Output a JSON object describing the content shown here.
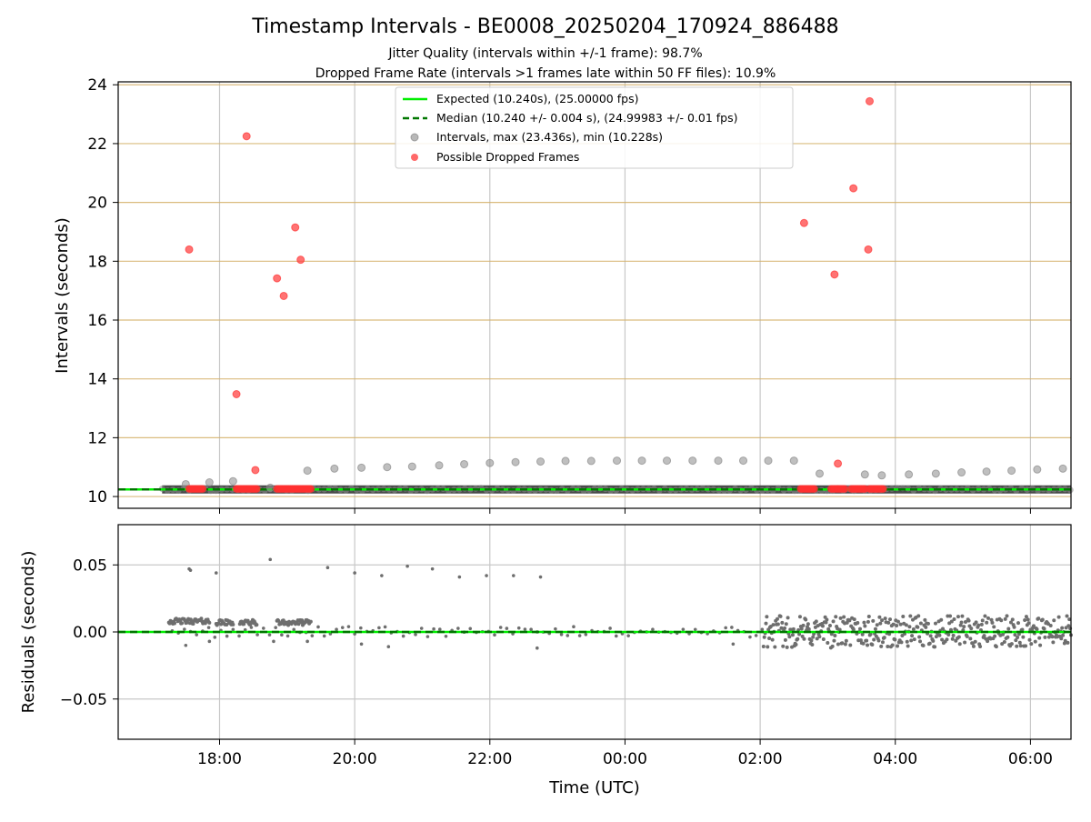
{
  "figure": {
    "title": "Timestamp Intervals - BE0008_20250204_170924_886488",
    "subtitle_1": "Jitter Quality (intervals within +/-1 frame): 98.7%",
    "subtitle_2": "Dropped Frame Rate (intervals >1 frames late within 50 FF files): 10.9%"
  },
  "chart_data": [
    {
      "type": "scatter",
      "name": "intervals",
      "ylabel": "Intervals (seconds)",
      "xlabel": "",
      "x_ticks": [
        "18:00",
        "20:00",
        "22:00",
        "00:00",
        "02:00",
        "04:00",
        "06:00"
      ],
      "x_tick_hours": [
        18,
        20,
        22,
        24,
        26,
        28,
        30
      ],
      "xlim_hours": [
        16.5,
        30.6
      ],
      "ylim": [
        9.6,
        24.1
      ],
      "y_ticks": [
        10,
        12,
        14,
        16,
        18,
        20,
        22,
        24
      ],
      "grid": true,
      "legend_position": "top-center",
      "legend": [
        {
          "label": "Expected (10.240s), (25.00000 fps)",
          "style": "solid-line",
          "color": "#00ee00"
        },
        {
          "label": "Median (10.240 +/- 0.004 s), (24.99983 +/- 0.01 fps)",
          "style": "dashed-line",
          "color": "#007700"
        },
        {
          "label": "Intervals, max (23.436s), min (10.228s)",
          "style": "marker",
          "color": "#888888"
        },
        {
          "label": "Possible Dropped Frames",
          "style": "marker",
          "color": "#ff4444"
        }
      ],
      "expected_value": 10.24,
      "median_value": 10.24,
      "baseline_band": {
        "start_hour": 17.15,
        "end_hour": 30.6,
        "value": 10.24
      },
      "gray_points": [
        {
          "x": 17.5,
          "y": 10.42
        },
        {
          "x": 17.85,
          "y": 10.48
        },
        {
          "x": 18.2,
          "y": 10.52
        },
        {
          "x": 18.75,
          "y": 10.3
        },
        {
          "x": 19.3,
          "y": 10.88
        },
        {
          "x": 19.7,
          "y": 10.95
        },
        {
          "x": 20.1,
          "y": 10.98
        },
        {
          "x": 20.48,
          "y": 11.0
        },
        {
          "x": 20.85,
          "y": 11.02
        },
        {
          "x": 21.25,
          "y": 11.06
        },
        {
          "x": 21.62,
          "y": 11.1
        },
        {
          "x": 22.0,
          "y": 11.14
        },
        {
          "x": 22.38,
          "y": 11.17
        },
        {
          "x": 22.75,
          "y": 11.19
        },
        {
          "x": 23.12,
          "y": 11.21
        },
        {
          "x": 23.5,
          "y": 11.21
        },
        {
          "x": 23.88,
          "y": 11.22
        },
        {
          "x": 24.25,
          "y": 11.22
        },
        {
          "x": 24.62,
          "y": 11.22
        },
        {
          "x": 25.0,
          "y": 11.22
        },
        {
          "x": 25.38,
          "y": 11.22
        },
        {
          "x": 25.75,
          "y": 11.22
        },
        {
          "x": 26.12,
          "y": 11.22
        },
        {
          "x": 26.5,
          "y": 11.22
        },
        {
          "x": 26.88,
          "y": 10.78
        },
        {
          "x": 27.55,
          "y": 10.75
        },
        {
          "x": 27.8,
          "y": 10.72
        },
        {
          "x": 28.2,
          "y": 10.75
        },
        {
          "x": 28.6,
          "y": 10.78
        },
        {
          "x": 28.98,
          "y": 10.82
        },
        {
          "x": 29.35,
          "y": 10.85
        },
        {
          "x": 29.72,
          "y": 10.88
        },
        {
          "x": 30.1,
          "y": 10.92
        },
        {
          "x": 30.48,
          "y": 10.95
        }
      ],
      "red_points": [
        {
          "x": 17.55,
          "y": 18.4
        },
        {
          "x": 18.4,
          "y": 22.25
        },
        {
          "x": 18.25,
          "y": 13.48
        },
        {
          "x": 18.53,
          "y": 10.9
        },
        {
          "x": 18.85,
          "y": 17.42
        },
        {
          "x": 18.95,
          "y": 16.82
        },
        {
          "x": 19.12,
          "y": 19.15
        },
        {
          "x": 19.2,
          "y": 18.05
        },
        {
          "x": 26.65,
          "y": 19.3
        },
        {
          "x": 27.1,
          "y": 17.55
        },
        {
          "x": 27.15,
          "y": 11.12
        },
        {
          "x": 27.38,
          "y": 20.48
        },
        {
          "x": 27.6,
          "y": 18.4
        },
        {
          "x": 27.62,
          "y": 23.44
        }
      ],
      "red_clusters": [
        {
          "start": 17.55,
          "end": 17.75,
          "y": 10.26
        },
        {
          "start": 18.25,
          "end": 18.55,
          "y": 10.26
        },
        {
          "start": 18.85,
          "end": 19.35,
          "y": 10.26
        },
        {
          "start": 26.6,
          "end": 26.8,
          "y": 10.26
        },
        {
          "start": 27.05,
          "end": 27.25,
          "y": 10.26
        },
        {
          "start": 27.35,
          "end": 27.55,
          "y": 10.26
        },
        {
          "start": 27.62,
          "end": 27.82,
          "y": 10.26
        }
      ]
    },
    {
      "type": "scatter",
      "name": "residuals",
      "ylabel": "Residuals (seconds)",
      "xlabel": "Time (UTC)",
      "x_ticks": [
        "18:00",
        "20:00",
        "22:00",
        "00:00",
        "02:00",
        "04:00",
        "06:00"
      ],
      "x_tick_hours": [
        18,
        20,
        22,
        24,
        26,
        28,
        30
      ],
      "xlim_hours": [
        16.5,
        30.6
      ],
      "ylim": [
        -0.08,
        0.08
      ],
      "y_ticks": [
        "0.05",
        "0.00",
        "−0.05"
      ],
      "y_tick_values": [
        0.05,
        0.0,
        -0.05
      ],
      "grid": true,
      "zero_line_value": 0.0,
      "outliers": [
        {
          "x": 17.55,
          "y": 0.047
        },
        {
          "x": 17.57,
          "y": 0.046
        },
        {
          "x": 17.95,
          "y": 0.044
        },
        {
          "x": 18.75,
          "y": 0.054
        },
        {
          "x": 19.6,
          "y": 0.048
        },
        {
          "x": 20.0,
          "y": 0.044
        },
        {
          "x": 20.4,
          "y": 0.042
        },
        {
          "x": 20.78,
          "y": 0.049
        },
        {
          "x": 21.15,
          "y": 0.047
        },
        {
          "x": 21.55,
          "y": 0.041
        },
        {
          "x": 21.95,
          "y": 0.042
        },
        {
          "x": 22.35,
          "y": 0.042
        },
        {
          "x": 22.75,
          "y": 0.041
        },
        {
          "x": 17.5,
          "y": -0.01
        },
        {
          "x": 17.85,
          "y": -0.007
        },
        {
          "x": 20.1,
          "y": -0.009
        },
        {
          "x": 20.5,
          "y": -0.011
        },
        {
          "x": 22.7,
          "y": -0.012
        },
        {
          "x": 25.6,
          "y": -0.009
        },
        {
          "x": 18.8,
          "y": -0.007
        },
        {
          "x": 19.3,
          "y": -0.007
        }
      ],
      "band_segments": [
        {
          "start": 17.25,
          "end": 17.85,
          "center": 0.008,
          "spread": 0.002
        },
        {
          "start": 17.95,
          "end": 18.2,
          "center": 0.007,
          "spread": 0.002
        },
        {
          "start": 18.3,
          "end": 18.55,
          "center": 0.007,
          "spread": 0.002
        },
        {
          "start": 18.85,
          "end": 19.35,
          "center": 0.007,
          "spread": 0.002
        },
        {
          "start": 26.05,
          "end": 30.6,
          "center": 0.0,
          "spread": 0.012
        }
      ]
    }
  ]
}
